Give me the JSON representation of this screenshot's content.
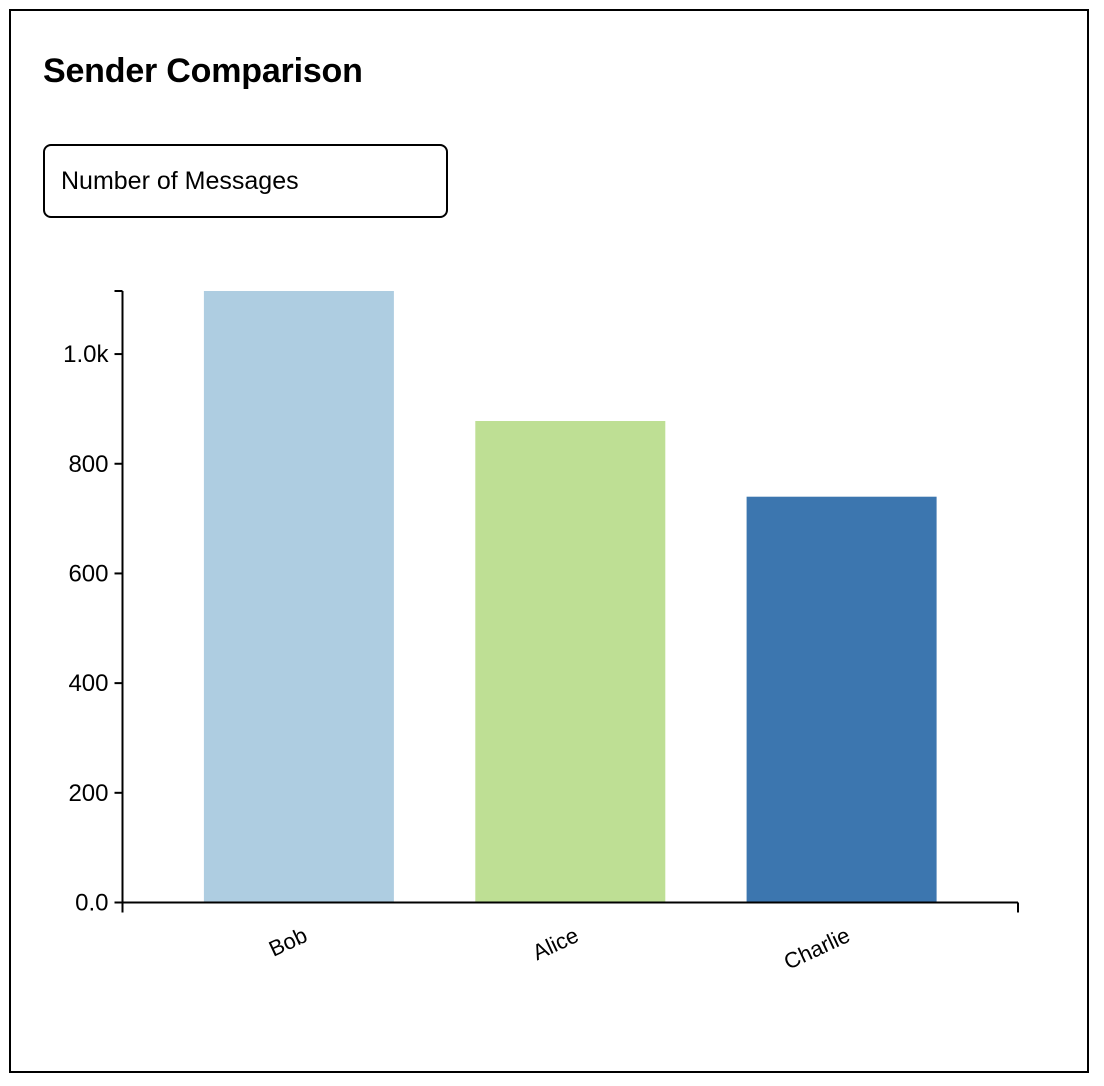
{
  "title": "Sender Comparison",
  "metric_selector": {
    "selected": "Number of Messages"
  },
  "chart_data": {
    "type": "bar",
    "title": "",
    "xlabel": "",
    "ylabel": "",
    "categories": [
      "Bob",
      "Alice",
      "Charlie"
    ],
    "values": [
      1115,
      878,
      740
    ],
    "colors": [
      "#aecde1",
      "#bedf94",
      "#3c76af"
    ],
    "ylim": [
      0,
      1115
    ],
    "yticks": [
      0,
      200,
      400,
      600,
      800,
      1000
    ],
    "ytick_labels": [
      "0.0",
      "200",
      "400",
      "600",
      "800",
      "1.0k"
    ],
    "grid": false,
    "legend": "none"
  }
}
